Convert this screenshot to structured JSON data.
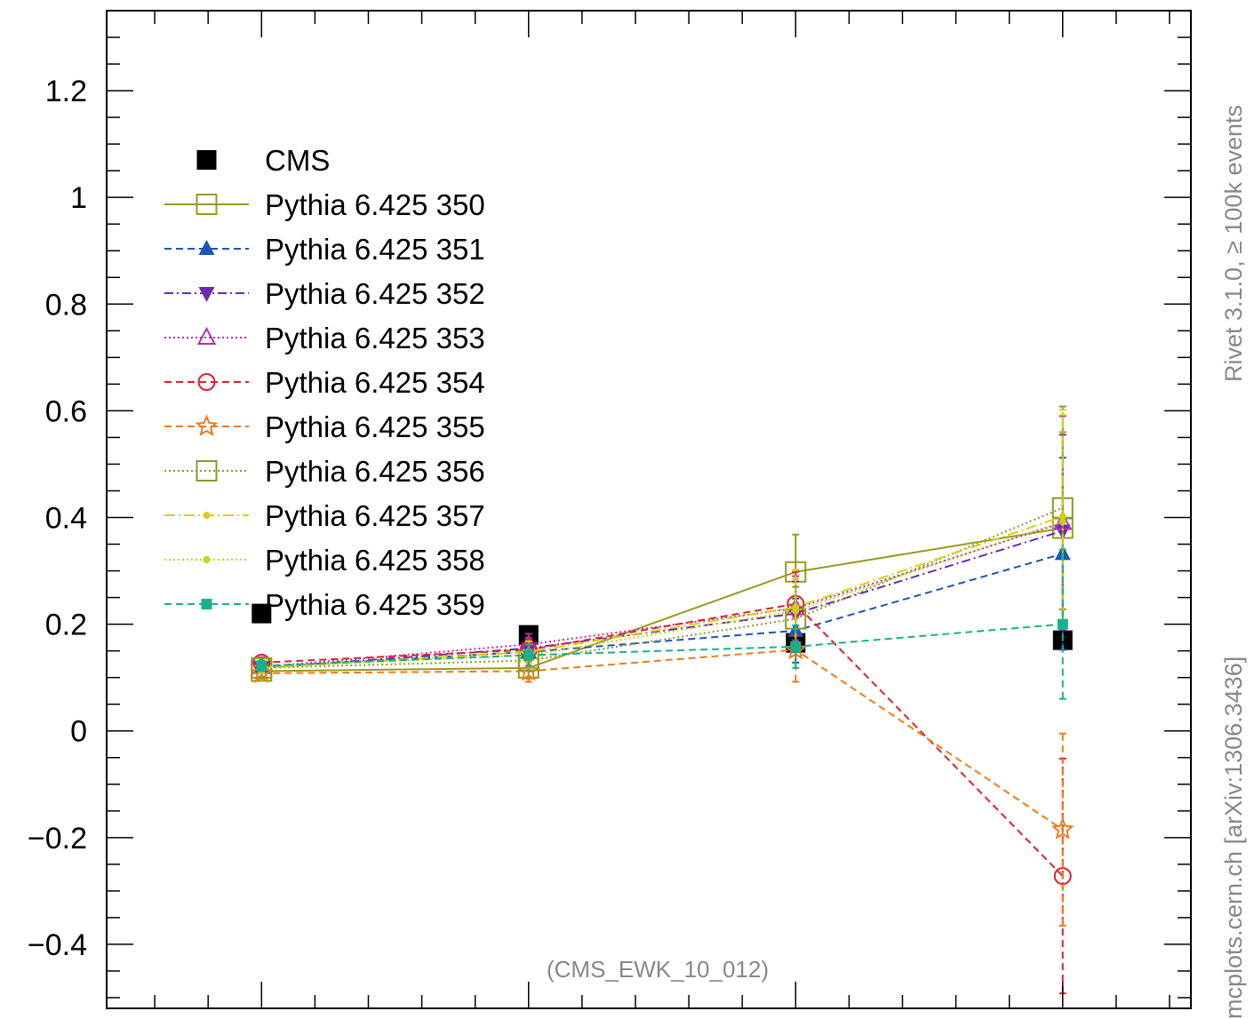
{
  "chart_data": {
    "type": "line",
    "annotation": "(CMS_EWK_10_012)",
    "side_label_top": "Rivet 3.1.0, ≥ 100k events",
    "side_label_bottom": "mcplots.cern.ch [arXiv:1306.3436]",
    "ylim": [
      -0.52,
      1.35
    ],
    "xlim": [
      -0.58,
      3.48
    ],
    "y_ticks": [
      -0.4,
      -0.2,
      0,
      0.2,
      0.4,
      0.6,
      0.8,
      1,
      1.2
    ],
    "y_tick_labels": [
      "−0.4",
      "−0.2",
      "0",
      "0.2",
      "0.4",
      "0.6",
      "0.8",
      "1",
      "1.2"
    ],
    "x": [
      0,
      1,
      2,
      3
    ],
    "legend_position": "top-left",
    "colors": {
      "CMS": "#000000",
      "350": "#9a9a1f",
      "351": "#1b57b7",
      "352": "#6a2bb0",
      "353": "#b32eb3",
      "354": "#e0202e",
      "355": "#f07a1a",
      "356": "#8a9a2a",
      "357": "#d9cf10",
      "358": "#c3d21b",
      "359": "#17b28b"
    },
    "series": [
      {
        "name": "CMS",
        "key": "CMS",
        "values": [
          0.22,
          0.18,
          0.165,
          0.17
        ],
        "err": [
          0,
          0,
          0,
          0
        ]
      },
      {
        "name": "Pythia 6.425 350",
        "key": "350",
        "values": [
          0.112,
          0.118,
          0.298,
          0.38
        ],
        "err": [
          0.01,
          0.02,
          0.07,
          0.18
        ]
      },
      {
        "name": "Pythia 6.425 351",
        "key": "351",
        "values": [
          0.12,
          0.148,
          0.188,
          0.332
        ],
        "err": [
          0.01,
          0.02,
          0.06,
          0.18
        ]
      },
      {
        "name": "Pythia 6.425 352",
        "key": "352",
        "values": [
          0.118,
          0.155,
          0.22,
          0.375
        ],
        "err": [
          0.01,
          0.02,
          0.06,
          0.18
        ]
      },
      {
        "name": "Pythia 6.425 353",
        "key": "353",
        "values": [
          0.12,
          0.162,
          0.23,
          0.39
        ],
        "err": [
          0.01,
          0.02,
          0.06,
          0.2
        ]
      },
      {
        "name": "Pythia 6.425 354",
        "key": "354",
        "values": [
          0.128,
          0.152,
          0.238,
          -0.272
        ],
        "err": [
          0.01,
          0.02,
          0.06,
          0.22
        ]
      },
      {
        "name": "Pythia 6.425 355",
        "key": "355",
        "values": [
          0.108,
          0.112,
          0.152,
          -0.185
        ],
        "err": [
          0.01,
          0.02,
          0.06,
          0.18
        ]
      },
      {
        "name": "Pythia 6.425 356",
        "key": "356",
        "values": [
          0.118,
          0.132,
          0.21,
          0.418
        ],
        "err": [
          0.01,
          0.02,
          0.06,
          0.19
        ]
      },
      {
        "name": "Pythia 6.425 357",
        "key": "357",
        "values": [
          0.118,
          0.148,
          0.232,
          0.402
        ],
        "err": [
          0.01,
          0.02,
          0.07,
          0.2
        ]
      },
      {
        "name": "Pythia 6.425 358",
        "key": "358",
        "values": [
          0.12,
          0.142,
          0.225,
          0.392
        ],
        "err": [
          0.01,
          0.02,
          0.06,
          0.2
        ]
      },
      {
        "name": "Pythia 6.425 359",
        "key": "359",
        "values": [
          0.122,
          0.142,
          0.158,
          0.2
        ],
        "err": [
          0.01,
          0.02,
          0.04,
          0.14
        ]
      }
    ]
  }
}
